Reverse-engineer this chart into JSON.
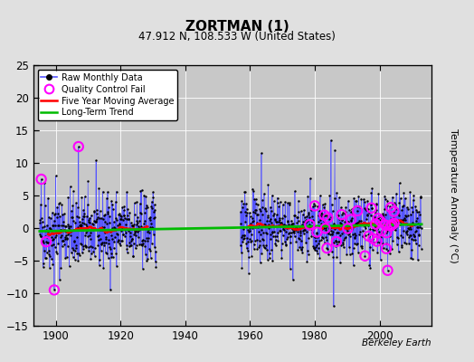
{
  "title": "ZORTMAN (1)",
  "subtitle": "47.912 N, 108.533 W (United States)",
  "ylabel": "Temperature Anomaly (°C)",
  "watermark": "Berkeley Earth",
  "xlim": [
    1893,
    2016
  ],
  "ylim": [
    -15,
    25
  ],
  "yticks": [
    -15,
    -10,
    -5,
    0,
    5,
    10,
    15,
    20,
    25
  ],
  "xticks": [
    1900,
    1920,
    1940,
    1960,
    1980,
    2000
  ],
  "bg_color": "#e0e0e0",
  "plot_bg_color": "#c8c8c8",
  "raw_line_color": "#5555ff",
  "raw_dot_color": "#000000",
  "qc_color": "#ff00ff",
  "moving_avg_color": "#ff0000",
  "trend_color": "#00bb00",
  "legend_labels": [
    "Raw Monthly Data",
    "Quality Control Fail",
    "Five Year Moving Average",
    "Long-Term Trend"
  ],
  "seg1_start": 1895,
  "seg1_end": 1931,
  "seg2_start": 1957,
  "seg2_end": 2013,
  "seed": 42
}
